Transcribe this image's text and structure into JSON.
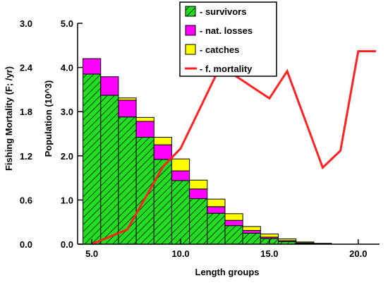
{
  "chart_data": {
    "type": "bar",
    "xlabel": "Length groups",
    "ylabel_left": "Fishing Mortality (F; /yr)",
    "ylabel_right": "Population (10^3)",
    "x_ticks": [
      {
        "value": 5,
        "label": "5.0"
      },
      {
        "value": 10,
        "label": "10.0"
      },
      {
        "value": 15,
        "label": "15.0"
      },
      {
        "value": 20,
        "label": "20.0"
      }
    ],
    "xlim": [
      4.2,
      21.2
    ],
    "mortality_ticks": [
      {
        "value": 0,
        "label": "0.0"
      },
      {
        "value": 0.6,
        "label": "0.6"
      },
      {
        "value": 1.2,
        "label": "1.2"
      },
      {
        "value": 1.8,
        "label": "1.8"
      },
      {
        "value": 2.4,
        "label": "2.4"
      },
      {
        "value": 3.0,
        "label": "3.0"
      }
    ],
    "mortality_lim": [
      0,
      3.0
    ],
    "population_ticks": [
      {
        "value": 0,
        "label": "0.0"
      },
      {
        "value": 1,
        "label": "1.0"
      },
      {
        "value": 2,
        "label": "2.0"
      },
      {
        "value": 3,
        "label": "3.0"
      },
      {
        "value": 4,
        "label": "4.0"
      },
      {
        "value": 5,
        "label": "5.0"
      }
    ],
    "population_lim": [
      0,
      5.0
    ],
    "bar_width": 1,
    "length_groups": [
      5,
      6,
      7,
      8,
      9,
      10,
      11,
      12,
      13,
      14,
      15,
      16,
      17,
      18
    ],
    "series": [
      {
        "name": "- survivors",
        "color": "#22dd22",
        "hatch": true,
        "values": [
          3.85,
          3.37,
          2.88,
          2.42,
          1.92,
          1.44,
          1.03,
          0.7,
          0.42,
          0.25,
          0.13,
          0.06,
          0.02,
          0.01
        ]
      },
      {
        "name": "- nat. losses",
        "color": "#ff00ff",
        "values": [
          0.35,
          0.42,
          0.38,
          0.36,
          0.33,
          0.22,
          0.22,
          0.15,
          0.12,
          0.06,
          0.03,
          0.02,
          0.01,
          0.0
        ]
      },
      {
        "name": "- catches",
        "color": "#ffff00",
        "values": [
          0.0,
          0.0,
          0.05,
          0.09,
          0.17,
          0.27,
          0.2,
          0.17,
          0.15,
          0.09,
          0.07,
          0.04,
          0.02,
          0.01
        ]
      }
    ],
    "line": {
      "name": "- f. mortality",
      "color": "#ff2020",
      "x": [
        5.0,
        7.0,
        9.0,
        10.0,
        12.0,
        13.0,
        15.0,
        16.0,
        18.0,
        19.0,
        20.0,
        21.0
      ],
      "y": [
        0.0,
        0.2,
        1.05,
        1.3,
        2.3,
        2.3,
        1.98,
        2.35,
        1.04,
        1.27,
        2.62,
        2.62
      ]
    },
    "legend_position": "top-center"
  }
}
